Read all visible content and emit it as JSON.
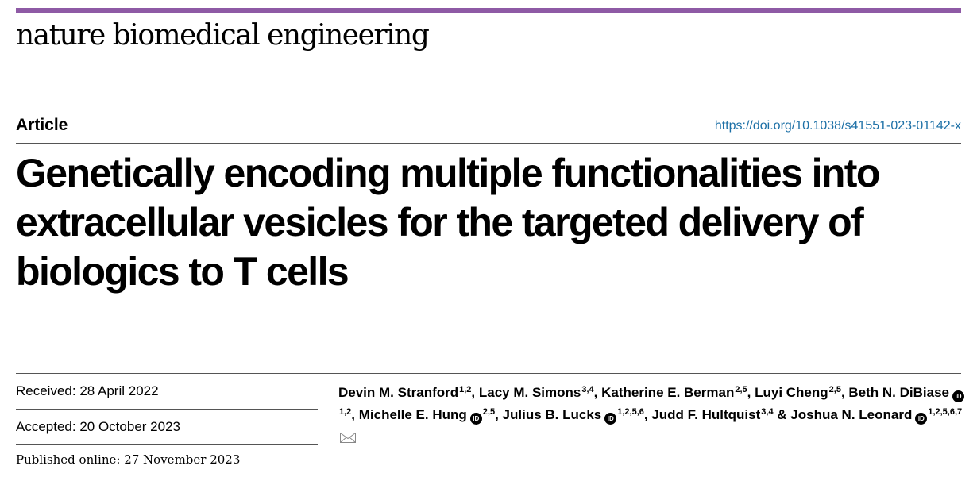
{
  "header": {
    "journal": "nature biomedical engineering",
    "article_type": "Article",
    "doi": "https://doi.org/10.1038/s41551-023-01142-x",
    "accent_color": "#8e5aa5"
  },
  "title": "Genetically encoding multiple functionalities into extracellular vesicles for the targeted delivery of biologics to T cells",
  "dates": {
    "received": "Received: 28 April 2022",
    "accepted": "Accepted: 20 October 2023",
    "published": "Published online: 27 November 2023"
  },
  "authors": [
    {
      "name": "Devin M. Stranford",
      "aff": "1,2",
      "orcid": false,
      "sep": ", "
    },
    {
      "name": "Lacy M. Simons",
      "aff": "3,4",
      "orcid": false,
      "sep": ", "
    },
    {
      "name": "Katherine E. Berman",
      "aff": "2,5",
      "orcid": false,
      "sep": ", "
    },
    {
      "name": "Luyi Cheng",
      "aff": "2,5",
      "orcid": false,
      "sep": ", "
    },
    {
      "name": "Beth N. DiBiase",
      "aff": "1,2",
      "orcid": true,
      "sep": ", "
    },
    {
      "name": "Michelle E. Hung",
      "aff": "2,5",
      "orcid": true,
      "sep": ", "
    },
    {
      "name": "Julius B. Lucks",
      "aff": "1,2,5,6",
      "orcid": true,
      "sep": ", "
    },
    {
      "name": "Judd F. Hultquist",
      "aff": "3,4",
      "orcid": false,
      "sep": " & "
    },
    {
      "name": "Joshua N. Leonard",
      "aff": "1,2,5,6,7",
      "orcid": true,
      "sep": "",
      "corresponding": true
    }
  ],
  "icons": {
    "orcid": "orcid-icon",
    "email": "envelope-icon"
  }
}
